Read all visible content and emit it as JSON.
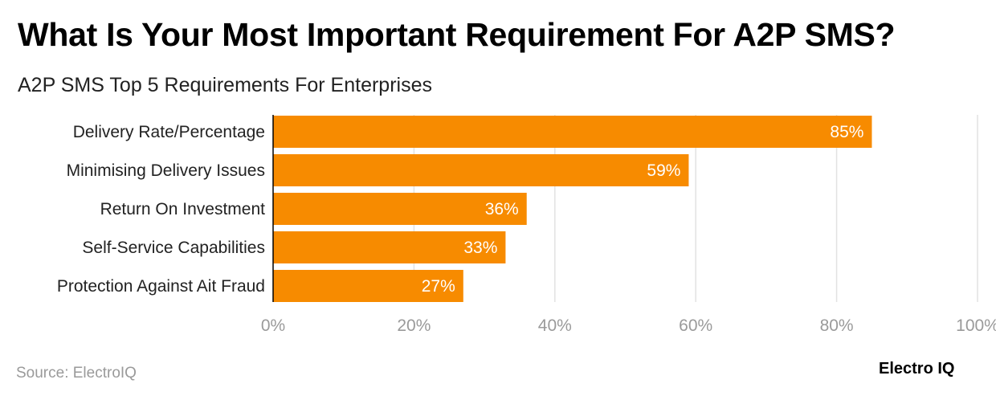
{
  "header": {
    "title": "What Is Your Most Important Requirement For A2P SMS?",
    "subtitle": "A2P SMS Top 5 Requirements For Enterprises"
  },
  "chart_data": {
    "type": "bar",
    "orientation": "horizontal",
    "categories": [
      "Delivery Rate/Percentage",
      "Minimising Delivery Issues",
      "Return On Investment",
      "Self-Service Capabilities",
      "Protection Against Ait Fraud"
    ],
    "values": [
      85,
      59,
      36,
      33,
      27
    ],
    "value_labels": [
      "85%",
      "59%",
      "36%",
      "33%",
      "27%"
    ],
    "xlim": [
      0,
      100
    ],
    "xticks": [
      0,
      20,
      40,
      60,
      80,
      100
    ],
    "xtick_labels": [
      "0%",
      "20%",
      "40%",
      "60%",
      "80%",
      "100%"
    ],
    "bar_color": "#f78b00",
    "grid": true
  },
  "footer": {
    "source": "Source: ElectroIQ",
    "brand": "Electro IQ"
  }
}
